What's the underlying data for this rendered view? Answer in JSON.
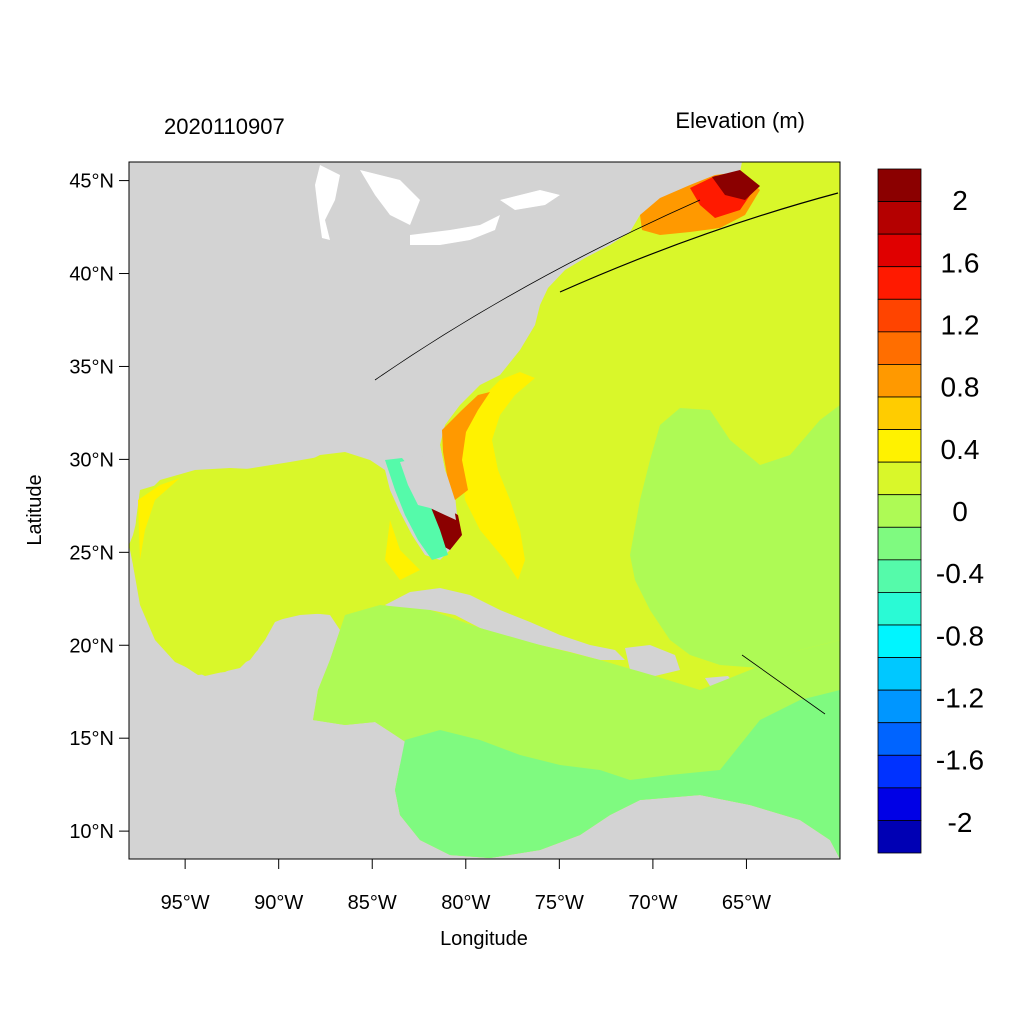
{
  "header": {
    "left_title": "2020110907",
    "right_title": "Elevation (m)"
  },
  "axes": {
    "xlabel": "Longitude",
    "ylabel": "Latitude",
    "x_ticks": [
      "95°W",
      "90°W",
      "85°W",
      "80°W",
      "75°W",
      "70°W",
      "65°W"
    ],
    "x_tick_values": [
      -95,
      -90,
      -85,
      -80,
      -75,
      -70,
      -65
    ],
    "y_ticks": [
      "45°N",
      "40°N",
      "35°N",
      "30°N",
      "25°N",
      "20°N",
      "15°N",
      "10°N"
    ],
    "y_tick_values": [
      45,
      40,
      35,
      30,
      25,
      20,
      15,
      10
    ],
    "lon_range": [
      -98,
      -60
    ],
    "lat_range": [
      8.5,
      46
    ]
  },
  "colorbar": {
    "colors": [
      "#8B0000",
      "#B40000",
      "#E00000",
      "#FF1A00",
      "#FF4400",
      "#FF6E00",
      "#FF9900",
      "#FFCC00",
      "#FFF200",
      "#D9F72A",
      "#AEFA55",
      "#7FFA80",
      "#55FAAA",
      "#2AFAD5",
      "#00F5FF",
      "#00C8FF",
      "#0096FF",
      "#0064FF",
      "#0032FF",
      "#0000E6",
      "#0000B4"
    ],
    "labels": [
      "2",
      "1.6",
      "1.2",
      "0.8",
      "0.4",
      "0",
      "-0.4",
      "-0.8",
      "-1.2",
      "-1.6",
      "-2"
    ],
    "label_values": [
      2,
      1.6,
      1.2,
      0.8,
      0.4,
      0,
      -0.4,
      -0.8,
      -1.2,
      -1.6,
      -2
    ]
  },
  "map_colors": {
    "land": "#D3D3D3",
    "water_white": "#FFFFFF",
    "level_0_4": "#D9F72A",
    "level_0_6": "#FFF200",
    "level_0_8": "#FFCC00",
    "level_1_0": "#FF9900",
    "level_1_2": "#FF6E00",
    "level_1_6": "#FF1A00",
    "level_2": "#8B0000",
    "level_0_2": "#AEFA55",
    "level_0_0": "#7FFA80",
    "level_neg": "#55FAAA",
    "level_neg2": "#2AFAD5"
  }
}
